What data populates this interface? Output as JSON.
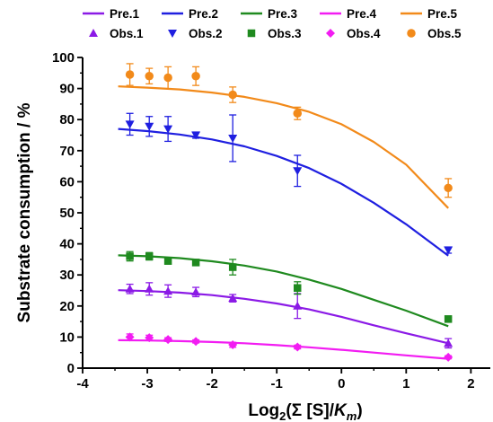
{
  "chart_data": {
    "type": "scatter",
    "title": "",
    "xlabel_parts": {
      "prefix": "Log",
      "sub": "2",
      "middle": "(Σ [S]/",
      "italic": "K",
      "italic_sub": "m",
      "suffix": ")"
    },
    "ylabel": "Substrate consumption / %",
    "xlim": [
      -4,
      2.3
    ],
    "ylim": [
      0,
      100
    ],
    "xticks": [
      -4,
      -3,
      -2,
      -1,
      0,
      1,
      2
    ],
    "yticks": [
      0,
      10,
      20,
      30,
      40,
      50,
      60,
      70,
      80,
      90,
      100
    ],
    "grid": false,
    "legend_position": "top",
    "predicted": [
      {
        "name": "Pre.1",
        "color": "#8B1AE6",
        "x": [
          -3.45,
          -3.0,
          -2.5,
          -2.0,
          -1.5,
          -1.0,
          -0.5,
          0.0,
          0.5,
          1.0,
          1.65
        ],
        "y": [
          25.1,
          24.8,
          24.3,
          23.5,
          22.3,
          20.8,
          18.9,
          16.5,
          13.8,
          11.2,
          8.0
        ]
      },
      {
        "name": "Pre.2",
        "color": "#1F1FE0",
        "x": [
          -3.45,
          -3.0,
          -2.5,
          -2.0,
          -1.5,
          -1.0,
          -0.5,
          0.0,
          0.5,
          1.0,
          1.65
        ],
        "y": [
          77.0,
          76.3,
          75.2,
          73.6,
          71.4,
          68.3,
          64.4,
          59.3,
          53.2,
          46.3,
          36.2
        ]
      },
      {
        "name": "Pre.3",
        "color": "#1F8A1F",
        "x": [
          -3.45,
          -3.0,
          -2.5,
          -2.0,
          -1.5,
          -1.0,
          -0.5,
          0.0,
          0.5,
          1.0,
          1.65
        ],
        "y": [
          36.3,
          36.0,
          35.4,
          34.4,
          33.0,
          31.1,
          28.5,
          25.5,
          22.0,
          18.5,
          13.5
        ]
      },
      {
        "name": "Pre.4",
        "color": "#F21CF2",
        "x": [
          -3.45,
          -3.0,
          -2.5,
          -2.0,
          -1.5,
          -1.0,
          -0.5,
          0.0,
          0.5,
          1.0,
          1.65
        ],
        "y": [
          9.0,
          8.9,
          8.7,
          8.4,
          8.0,
          7.4,
          6.7,
          5.9,
          5.0,
          4.1,
          3.0
        ]
      },
      {
        "name": "Pre.5",
        "color": "#F28A1A",
        "x": [
          -3.45,
          -3.0,
          -2.5,
          -2.0,
          -1.5,
          -1.0,
          -0.5,
          0.0,
          0.5,
          1.0,
          1.65
        ],
        "y": [
          90.7,
          90.3,
          89.7,
          88.7,
          87.3,
          85.3,
          82.5,
          78.5,
          72.8,
          65.5,
          51.5
        ]
      }
    ],
    "observed": [
      {
        "name": "Obs.1",
        "color": "#8B1AE6",
        "marker": "triangle-up",
        "points": [
          {
            "x": -3.27,
            "y": 25.5,
            "err": 1.5
          },
          {
            "x": -2.97,
            "y": 25.5,
            "err": 2.0
          },
          {
            "x": -2.68,
            "y": 24.8,
            "err": 2.0
          },
          {
            "x": -2.25,
            "y": 24.5,
            "err": 1.5
          },
          {
            "x": -1.68,
            "y": 22.5,
            "err": 1.2
          },
          {
            "x": -0.68,
            "y": 20.0,
            "err": 4.0
          },
          {
            "x": 1.65,
            "y": 8.0,
            "err": 1.5
          }
        ]
      },
      {
        "name": "Obs.2",
        "color": "#1F1FE0",
        "marker": "triangle-down",
        "points": [
          {
            "x": -3.27,
            "y": 78.5,
            "err": 3.5
          },
          {
            "x": -2.97,
            "y": 77.8,
            "err": 3.2
          },
          {
            "x": -2.68,
            "y": 77.0,
            "err": 4.0
          },
          {
            "x": -2.25,
            "y": 75.0,
            "err": 1.0
          },
          {
            "x": -1.68,
            "y": 74.0,
            "err": 7.5
          },
          {
            "x": -0.68,
            "y": 63.5,
            "err": 5.0
          },
          {
            "x": 1.65,
            "y": 38.0,
            "err": 1.0
          }
        ]
      },
      {
        "name": "Obs.3",
        "color": "#1F8A1F",
        "marker": "square",
        "points": [
          {
            "x": -3.27,
            "y": 36.0,
            "err": 1.5
          },
          {
            "x": -2.97,
            "y": 36.0,
            "err": 1.2
          },
          {
            "x": -2.68,
            "y": 34.5,
            "err": 1.0
          },
          {
            "x": -2.25,
            "y": 34.0,
            "err": 0.6
          },
          {
            "x": -1.68,
            "y": 32.5,
            "err": 2.5
          },
          {
            "x": -0.68,
            "y": 25.8,
            "err": 2.0
          },
          {
            "x": 1.65,
            "y": 15.8,
            "err": 0.5
          }
        ]
      },
      {
        "name": "Obs.4",
        "color": "#F21CF2",
        "marker": "diamond",
        "points": [
          {
            "x": -3.27,
            "y": 10.0,
            "err": 1.0
          },
          {
            "x": -2.97,
            "y": 9.8,
            "err": 0.8
          },
          {
            "x": -2.68,
            "y": 9.2,
            "err": 0.6
          },
          {
            "x": -2.25,
            "y": 8.6,
            "err": 0.5
          },
          {
            "x": -1.68,
            "y": 7.5,
            "err": 0.8
          },
          {
            "x": -0.68,
            "y": 6.8,
            "err": 0.6
          },
          {
            "x": 1.65,
            "y": 3.5,
            "err": 0.5
          }
        ]
      },
      {
        "name": "Obs.5",
        "color": "#F28A1A",
        "marker": "circle",
        "points": [
          {
            "x": -3.27,
            "y": 94.5,
            "err": 3.5
          },
          {
            "x": -2.97,
            "y": 94.0,
            "err": 2.5
          },
          {
            "x": -2.68,
            "y": 93.5,
            "err": 3.5
          },
          {
            "x": -2.25,
            "y": 94.0,
            "err": 3.0
          },
          {
            "x": -1.68,
            "y": 88.0,
            "err": 2.5
          },
          {
            "x": -0.68,
            "y": 82.0,
            "err": 2.0
          },
          {
            "x": 1.65,
            "y": 58.0,
            "err": 3.0
          }
        ]
      }
    ]
  }
}
